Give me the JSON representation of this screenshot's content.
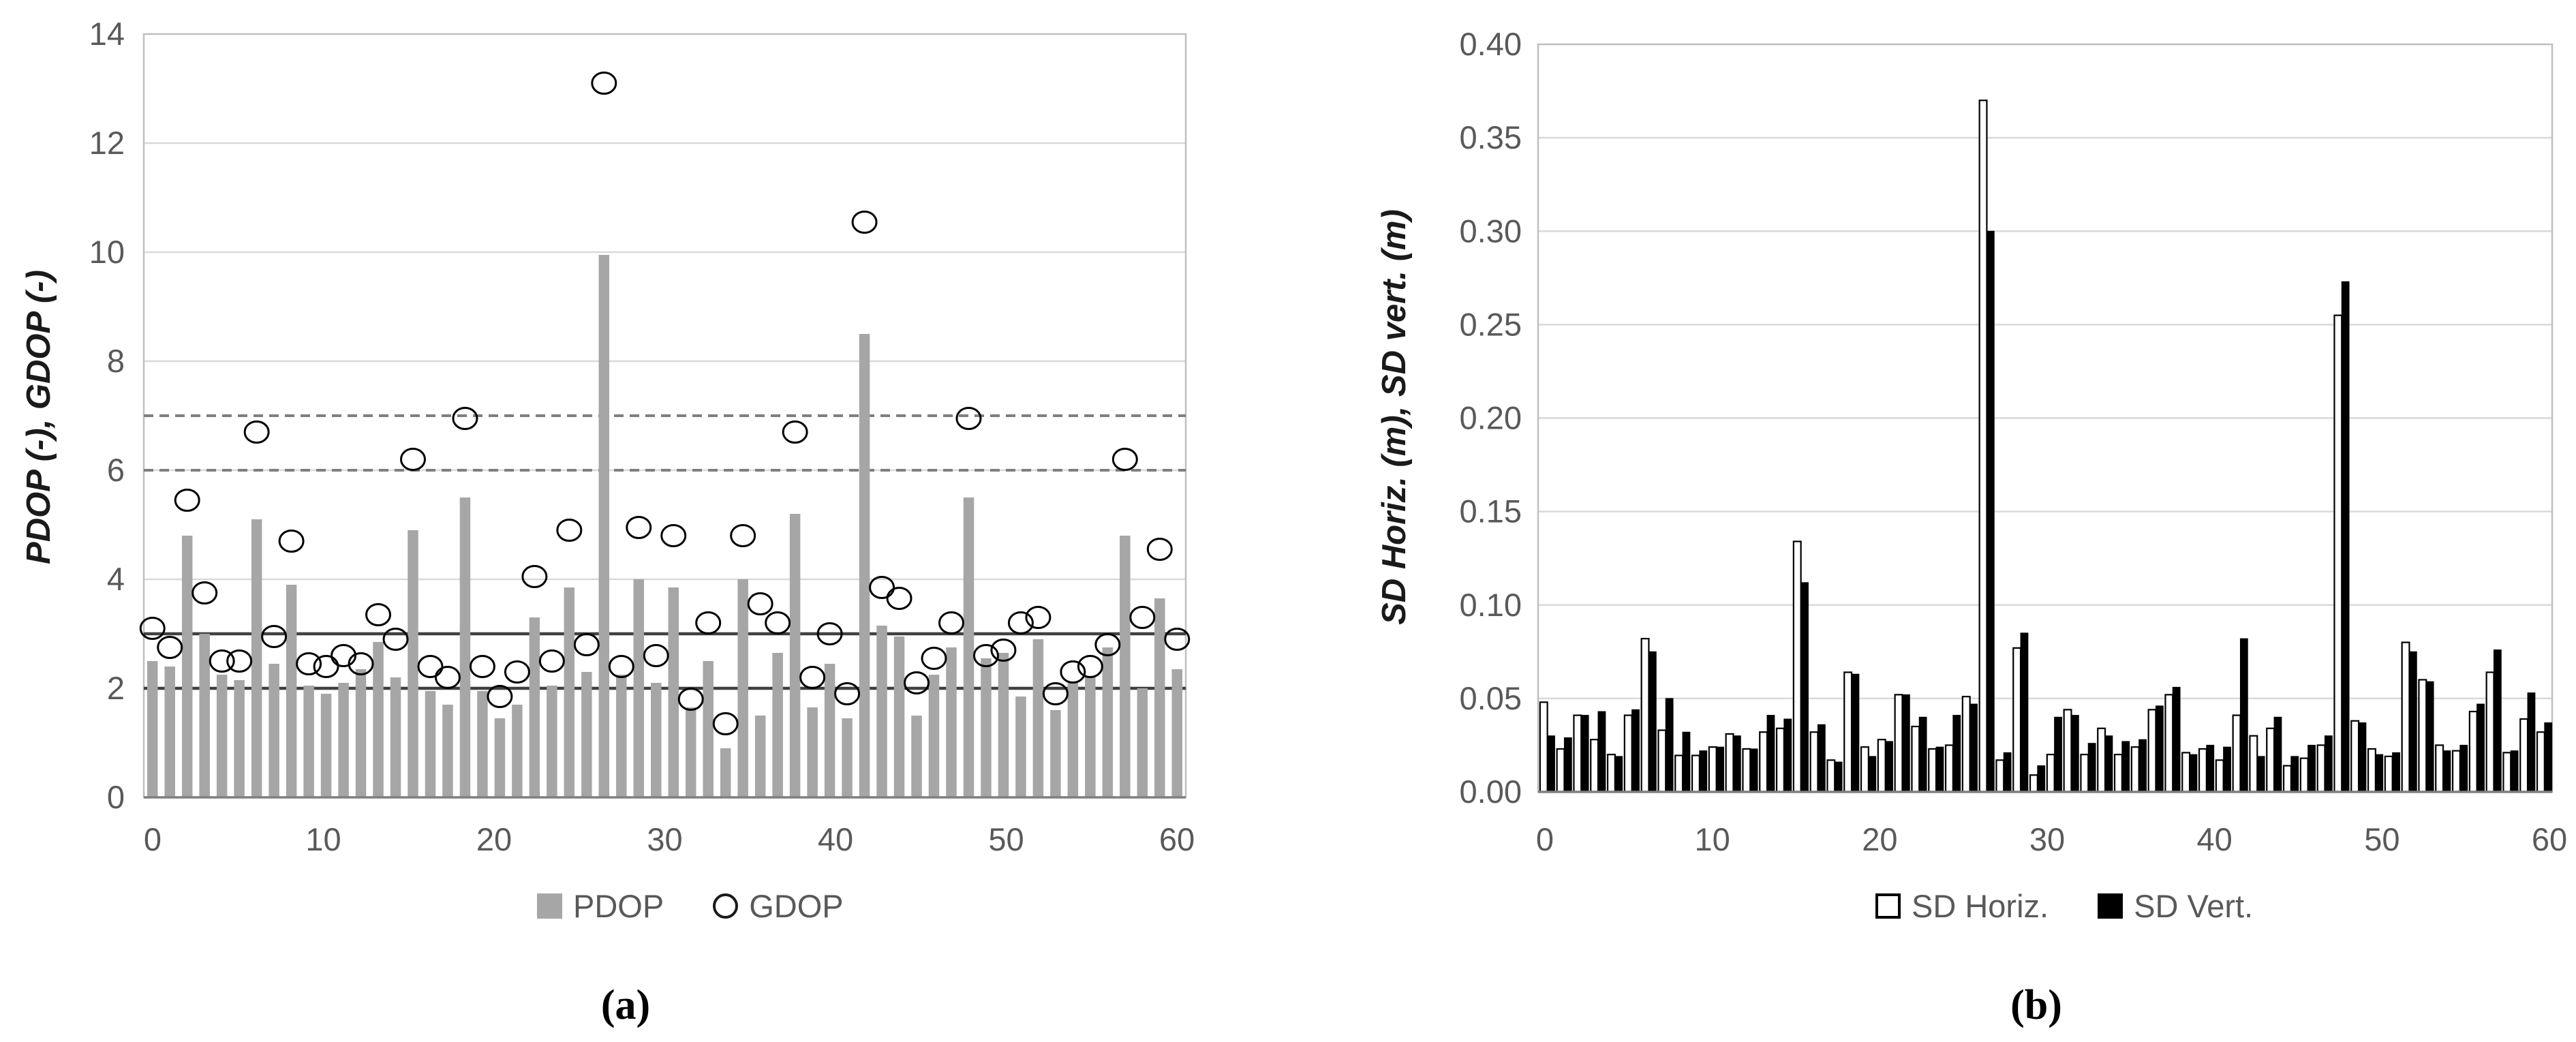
{
  "figure": {
    "background": "#ffffff",
    "tick_text_color": "#595959",
    "gridline_color": "#d9d9d9",
    "border_color": "#bfbfbf",
    "axis_line_color": "#808080"
  },
  "chart_data": [
    {
      "type": "bar",
      "subtype": "bar-with-scatter-overlay",
      "caption": "(a)",
      "title": "",
      "xlabel": "",
      "ylabel": "PDOP (-), GDOP (-)",
      "ylim": [
        0,
        14
      ],
      "yticks": [
        0,
        2,
        4,
        6,
        8,
        10,
        12,
        14
      ],
      "xticks": [
        0,
        10,
        20,
        30,
        40,
        50,
        60
      ],
      "grid": true,
      "legend_position": "bottom",
      "reference_lines": {
        "solid": [
          2,
          3
        ],
        "dashed": [
          6,
          7
        ]
      },
      "series": [
        {
          "name": "PDOP",
          "type": "bar",
          "color": "#a6a6a6",
          "values": [
            2.5,
            2.4,
            4.8,
            3.0,
            2.25,
            2.15,
            5.1,
            2.45,
            3.9,
            2.05,
            1.9,
            2.1,
            2.35,
            2.85,
            2.2,
            4.9,
            1.95,
            1.7,
            5.5,
            1.95,
            1.45,
            1.7,
            3.3,
            2.05,
            3.85,
            2.3,
            9.95,
            2.25,
            4.0,
            2.1,
            3.85,
            1.65,
            2.5,
            0.9,
            4.0,
            1.5,
            2.65,
            5.2,
            1.65,
            2.45,
            1.45,
            8.5,
            3.15,
            2.95,
            1.5,
            2.25,
            2.75,
            5.5,
            2.55,
            2.65,
            1.85,
            2.9,
            1.6,
            2.1,
            2.2,
            2.75,
            4.8,
            2.0,
            3.65,
            2.35
          ]
        },
        {
          "name": "GDOP",
          "type": "scatter",
          "marker": "open-circle",
          "color": "#000000",
          "values": [
            3.1,
            2.75,
            5.45,
            3.75,
            2.5,
            2.5,
            6.7,
            2.95,
            4.7,
            2.45,
            2.4,
            2.6,
            2.45,
            3.35,
            2.9,
            6.2,
            2.4,
            2.2,
            6.95,
            2.4,
            1.85,
            2.3,
            4.05,
            2.5,
            4.9,
            2.8,
            13.1,
            2.4,
            4.95,
            2.6,
            4.8,
            1.8,
            3.2,
            1.35,
            4.8,
            3.55,
            3.2,
            6.7,
            2.2,
            3.0,
            1.9,
            10.55,
            3.85,
            3.65,
            2.1,
            2.55,
            3.2,
            6.95,
            2.6,
            2.7,
            3.2,
            3.3,
            1.9,
            2.3,
            2.4,
            2.8,
            6.2,
            3.3,
            4.55,
            2.9
          ]
        }
      ]
    },
    {
      "type": "bar",
      "subtype": "paired-bars",
      "caption": "(b)",
      "title": "",
      "xlabel": "",
      "ylabel": "SD Horiz. (m), SD vert. (m)",
      "ylim": [
        0,
        0.4
      ],
      "ytick_labels": [
        "0.00",
        "0.05",
        "0.10",
        "0.15",
        "0.20",
        "0.25",
        "0.30",
        "0.35",
        "0.40"
      ],
      "xticks": [
        0,
        10,
        20,
        30,
        40,
        50,
        60
      ],
      "grid": true,
      "legend_position": "bottom",
      "series": [
        {
          "name": "SD Horiz.",
          "type": "bar",
          "color": "#ffffff",
          "stroke": "#000000",
          "values": [
            0.048,
            0.023,
            0.041,
            0.028,
            0.02,
            0.041,
            0.082,
            0.033,
            0.0195,
            0.0195,
            0.024,
            0.031,
            0.023,
            0.032,
            0.034,
            0.134,
            0.032,
            0.017,
            0.064,
            0.024,
            0.028,
            0.052,
            0.035,
            0.023,
            0.025,
            0.051,
            0.37,
            0.017,
            0.077,
            0.009,
            0.02,
            0.044,
            0.02,
            0.034,
            0.02,
            0.024,
            0.044,
            0.052,
            0.021,
            0.023,
            0.017,
            0.041,
            0.03,
            0.034,
            0.014,
            0.018,
            0.025,
            0.255,
            0.038,
            0.023,
            0.019,
            0.08,
            0.06,
            0.025,
            0.022,
            0.043,
            0.064,
            0.021,
            0.039,
            0.032
          ]
        },
        {
          "name": "SD Vert.",
          "type": "bar",
          "color": "#000000",
          "stroke": "#000000",
          "values": [
            0.03,
            0.029,
            0.041,
            0.043,
            0.019,
            0.044,
            0.075,
            0.05,
            0.032,
            0.022,
            0.024,
            0.03,
            0.023,
            0.041,
            0.039,
            0.112,
            0.036,
            0.016,
            0.063,
            0.019,
            0.027,
            0.052,
            0.04,
            0.024,
            0.041,
            0.047,
            0.3,
            0.021,
            0.085,
            0.014,
            0.04,
            0.041,
            0.026,
            0.03,
            0.027,
            0.028,
            0.046,
            0.056,
            0.02,
            0.025,
            0.024,
            0.082,
            0.019,
            0.04,
            0.019,
            0.025,
            0.03,
            0.273,
            0.037,
            0.02,
            0.021,
            0.075,
            0.059,
            0.022,
            0.025,
            0.047,
            0.076,
            0.022,
            0.053,
            0.037
          ]
        }
      ]
    }
  ]
}
